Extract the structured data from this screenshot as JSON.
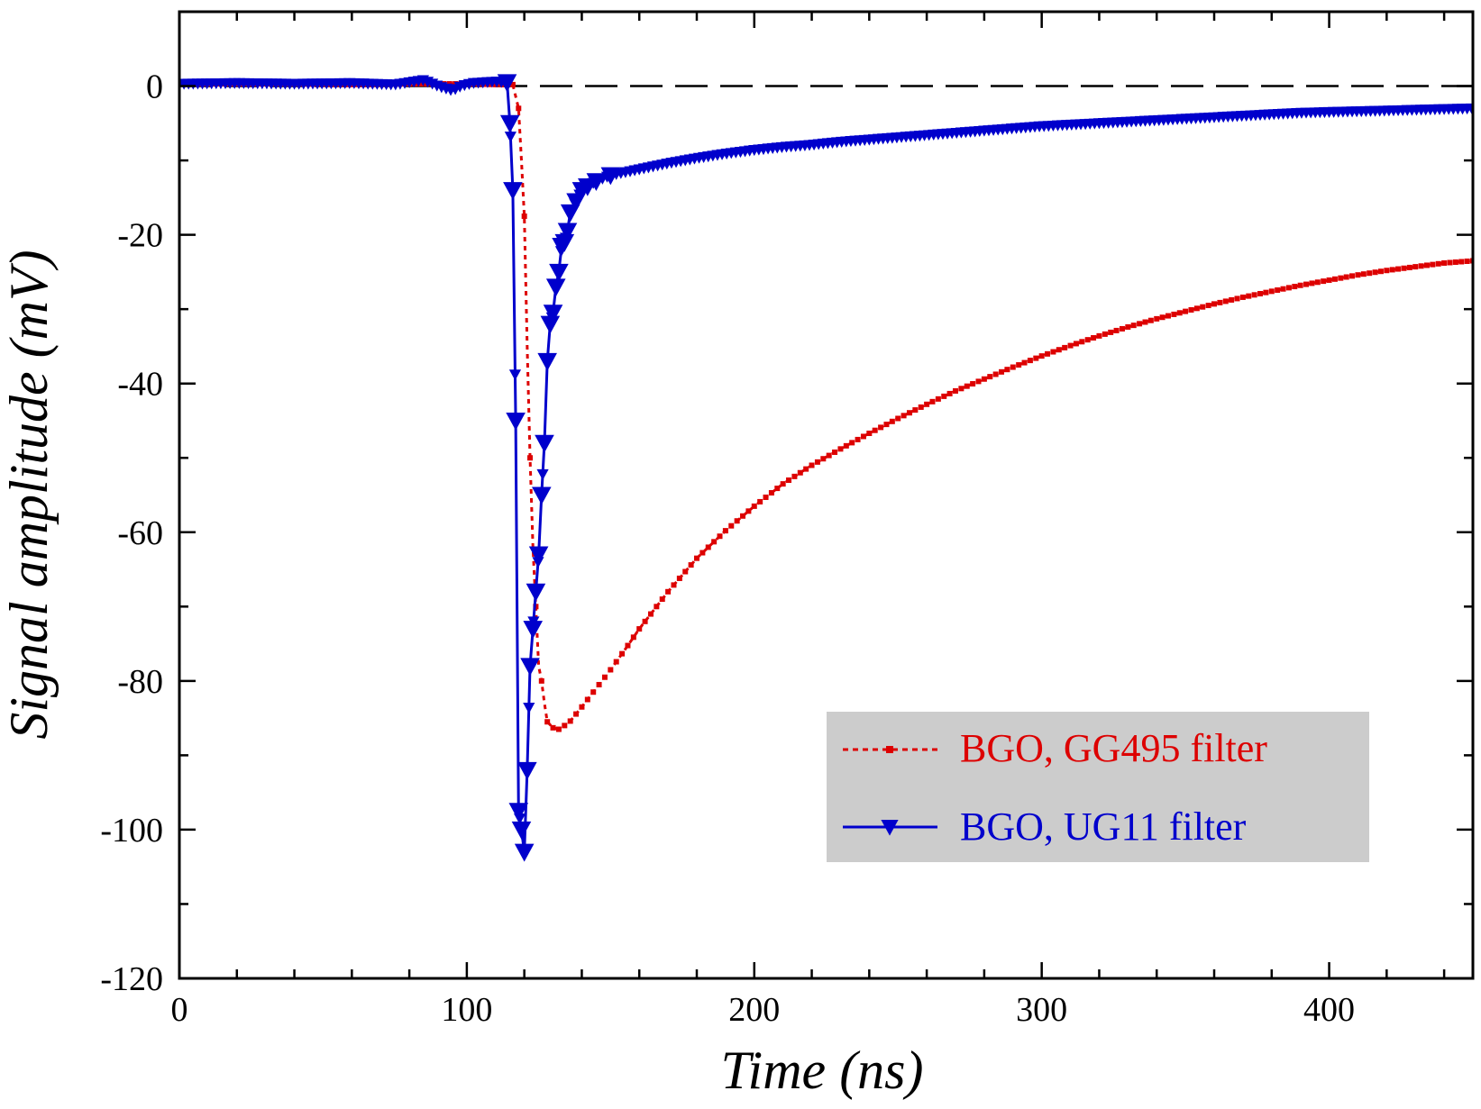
{
  "chart_data": {
    "type": "line",
    "xlabel": "Time (ns)",
    "ylabel": "Signal amplitude (mV)",
    "xlim": [
      0,
      450
    ],
    "ylim": [
      -120,
      10
    ],
    "x_ticks": [
      0,
      100,
      200,
      300,
      400
    ],
    "y_ticks": [
      0,
      -20,
      -40,
      -60,
      -80,
      -100,
      -120
    ],
    "x_tick_labels": [
      "0",
      "100",
      "200",
      "300",
      "400"
    ],
    "y_tick_labels": [
      "0",
      "-20",
      "-40",
      "-60",
      "-80",
      "-100",
      "-120"
    ],
    "x_minor_step": 20,
    "y_minor_step": 10,
    "reference_line": {
      "y": 0,
      "style": "dashed",
      "color": "#000000"
    },
    "grid": false,
    "legend_position": "bottom-right",
    "series": [
      {
        "name": "BGO, GG495 filter",
        "color": "#dd0000",
        "line_style": "dotted",
        "marker": "square",
        "x": [
          0,
          20,
          40,
          60,
          80,
          100,
          110,
          116,
          118,
          119,
          120,
          121,
          122,
          123,
          124,
          125,
          126,
          127,
          128,
          130,
          132,
          134,
          136,
          140,
          145,
          150,
          155,
          160,
          170,
          180,
          190,
          200,
          210,
          220,
          230,
          240,
          250,
          260,
          270,
          280,
          290,
          300,
          310,
          320,
          330,
          340,
          350,
          360,
          370,
          380,
          390,
          400,
          410,
          420,
          430,
          440,
          450
        ],
        "y": [
          0.3,
          0.3,
          0.3,
          0.2,
          0.3,
          0.3,
          0.2,
          0.2,
          -3,
          -10,
          -17.5,
          -35,
          -50,
          -62,
          -70,
          -78,
          -80,
          -83,
          -85.5,
          -86.3,
          -86.5,
          -86,
          -85.4,
          -83.5,
          -81,
          -78.5,
          -75.8,
          -73,
          -68,
          -63.5,
          -59.8,
          -56.5,
          -53.5,
          -51,
          -48.8,
          -46.7,
          -44.7,
          -42.8,
          -41,
          -39.4,
          -37.8,
          -36.3,
          -34.9,
          -33.6,
          -32.4,
          -31.3,
          -30.3,
          -29.3,
          -28.4,
          -27.6,
          -26.8,
          -26.1,
          -25.4,
          -24.8,
          -24.3,
          -23.8,
          -23.5
        ]
      },
      {
        "name": "BGO, UG11 filter",
        "color": "#0000cc",
        "line_style": "solid",
        "marker": "triangle-down",
        "x": [
          0,
          20,
          40,
          60,
          75,
          85,
          90,
          95,
          98,
          102,
          106,
          110,
          114,
          115,
          116,
          117,
          118,
          119,
          120,
          121,
          122,
          123,
          124,
          125,
          126,
          127,
          128,
          129,
          130,
          131,
          132,
          133,
          134,
          135,
          136,
          138,
          140,
          142,
          145,
          150,
          155,
          160,
          170,
          180,
          190,
          200,
          210,
          220,
          230,
          240,
          250,
          260,
          270,
          280,
          290,
          300,
          310,
          320,
          330,
          340,
          350,
          360,
          370,
          380,
          390,
          400,
          410,
          420,
          430,
          440,
          450
        ],
        "y": [
          0.3,
          0.4,
          0.3,
          0.4,
          0.2,
          0.8,
          0,
          -0.6,
          0,
          0.4,
          0.5,
          0.6,
          0.5,
          -5,
          -14,
          -45,
          -97.5,
          -100,
          -103,
          -92,
          -78,
          -73,
          -68,
          -63,
          -55,
          -48,
          -37,
          -32,
          -30.5,
          -27,
          -25,
          -21.5,
          -21,
          -19.5,
          -17,
          -15.5,
          -14,
          -13.5,
          -12.8,
          -12,
          -11.6,
          -11.2,
          -10.4,
          -9.7,
          -9.1,
          -8.6,
          -8.2,
          -7.9,
          -7.5,
          -7.2,
          -6.9,
          -6.6,
          -6.3,
          -6.0,
          -5.7,
          -5.4,
          -5.2,
          -5.0,
          -4.8,
          -4.6,
          -4.4,
          -4.2,
          -4.0,
          -3.8,
          -3.6,
          -3.5,
          -3.4,
          -3.3,
          -3.2,
          -3.1,
          -3.0
        ]
      }
    ]
  }
}
